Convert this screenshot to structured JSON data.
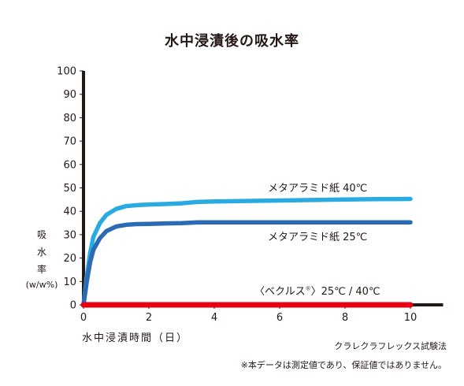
{
  "chart_data": {
    "type": "line",
    "title": "水中浸漬後の吸水率",
    "xlabel": "水中浸漬時間（日）",
    "ylabel_lines": [
      "吸",
      "水",
      "率",
      "(w/w%)"
    ],
    "xlim": [
      0,
      11
    ],
    "ylim": [
      0,
      100
    ],
    "x_ticks": [
      "0",
      "2",
      "4",
      "6",
      "8",
      "10"
    ],
    "y_ticks": [
      "0",
      "10",
      "20",
      "30",
      "40",
      "50",
      "60",
      "70",
      "80",
      "90",
      "100"
    ],
    "grid": false,
    "series": [
      {
        "name": "メタアラミド紙 40℃",
        "color": "#29abe2",
        "x": [
          0,
          0.1,
          0.2,
          0.3,
          0.5,
          0.7,
          1.0,
          1.3,
          1.6,
          2.0,
          2.5,
          3.0,
          3.5,
          4.0,
          5.0,
          6.0,
          7.0,
          8.0,
          9.0,
          10.0
        ],
        "y": [
          0,
          12,
          22,
          29,
          35,
          38.5,
          41,
          42.2,
          42.6,
          42.9,
          43.1,
          43.4,
          44,
          44.2,
          44.4,
          44.6,
          44.8,
          45,
          45.2,
          45.3
        ]
      },
      {
        "name": "メタアラミド紙 25℃",
        "color": "#2b6bb5",
        "x": [
          0,
          0.1,
          0.2,
          0.3,
          0.5,
          0.7,
          1.0,
          1.3,
          1.6,
          2.0,
          2.5,
          3.0,
          3.5,
          4.0,
          5.0,
          6.0,
          7.0,
          8.0,
          9.0,
          10.0
        ],
        "y": [
          0,
          10,
          18,
          23.5,
          28.5,
          31.5,
          33.5,
          34.2,
          34.5,
          34.6,
          34.8,
          34.9,
          35.3,
          35.3,
          35.3,
          35.3,
          35.3,
          35.3,
          35.3,
          35.3
        ]
      },
      {
        "name": "〈ベクルス®〉25℃ / 40℃",
        "color": "#e60012",
        "x": [
          0,
          10
        ],
        "y": [
          0,
          0
        ]
      }
    ]
  },
  "labels": {
    "series_40": "メタアラミド紙  40℃",
    "series_25": "メタアラミド紙  25℃",
    "vecrus_pre": "〈ベクルス",
    "vecrus_reg": "®",
    "vecrus_post": "〉25℃ / 40℃"
  },
  "footer": {
    "method": "クラレクラフレックス試験法",
    "note": "※本データは測定値であり、保証値ではありません。"
  }
}
